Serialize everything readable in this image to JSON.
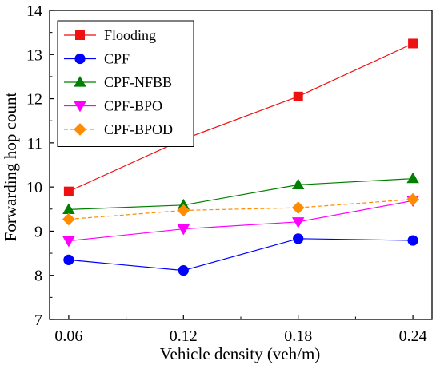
{
  "chart_data": {
    "type": "line",
    "title": "",
    "xlabel": "Vehicle density (veh/m)",
    "ylabel": "Forwarding hop count",
    "x": [
      0.06,
      0.12,
      0.18,
      0.24
    ],
    "x_tick_labels": [
      "0.06",
      "0.12",
      "0.18",
      "0.24"
    ],
    "xlim": [
      0.05,
      0.25
    ],
    "ylim": [
      7,
      14
    ],
    "y_ticks": [
      7,
      8,
      9,
      10,
      11,
      12,
      13,
      14
    ],
    "grid": false,
    "legend_position": "top-left",
    "series": [
      {
        "name": "Flooding",
        "values": [
          9.9,
          11.08,
          12.05,
          13.25
        ],
        "color": "#ee1111",
        "marker": "square",
        "dash": false
      },
      {
        "name": "CPF",
        "values": [
          8.35,
          8.11,
          8.83,
          8.79
        ],
        "color": "#0000ff",
        "marker": "circle",
        "dash": false
      },
      {
        "name": "CPF-NFBB",
        "values": [
          9.49,
          9.59,
          10.05,
          10.19
        ],
        "color": "#008000",
        "marker": "triangle-up",
        "dash": false
      },
      {
        "name": "CPF-BPO",
        "values": [
          8.78,
          9.05,
          9.21,
          9.69
        ],
        "color": "#ff00ff",
        "marker": "triangle-down",
        "dash": false
      },
      {
        "name": "CPF-BPOD",
        "values": [
          9.27,
          9.47,
          9.53,
          9.72
        ],
        "color": "#ff8c00",
        "marker": "diamond",
        "dash": true
      }
    ]
  }
}
